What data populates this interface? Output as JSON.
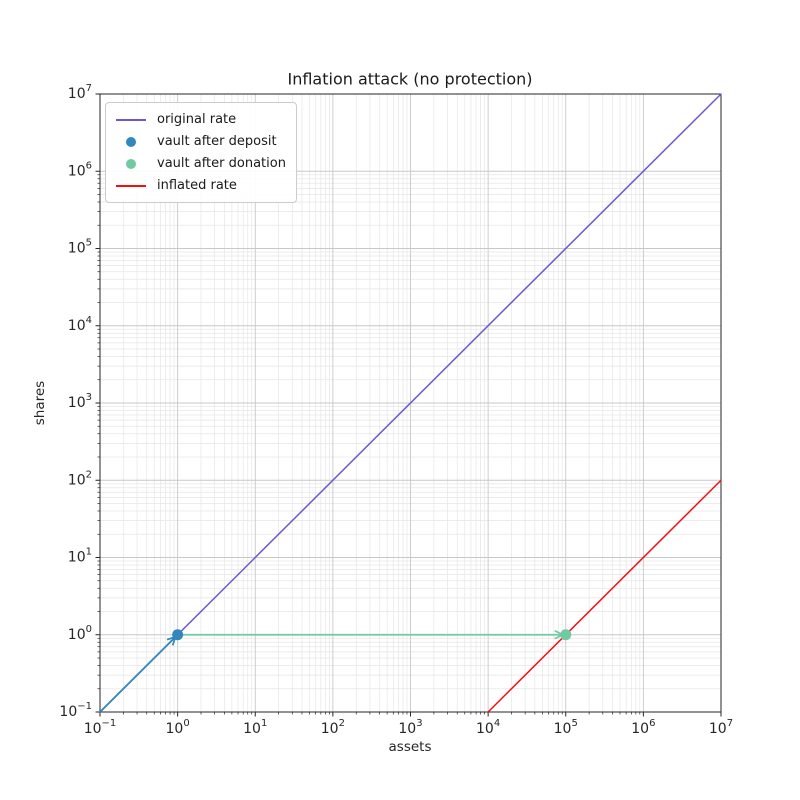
{
  "chart_data": {
    "type": "line",
    "title": "Inflation attack (no protection)",
    "xlabel": "assets",
    "ylabel": "shares",
    "xscale": "log",
    "yscale": "log",
    "xlim": [
      0.1,
      10000000
    ],
    "ylim": [
      0.1,
      10000000
    ],
    "x_tick_exponents": [
      -1,
      0,
      1,
      2,
      3,
      4,
      5,
      6,
      7
    ],
    "y_tick_exponents": [
      -1,
      0,
      1,
      2,
      3,
      4,
      5,
      6,
      7
    ],
    "grid": {
      "which": "both",
      "major_color": "#c8c8c8",
      "minor_color": "#e6e6e6"
    },
    "legend_position": "upper left",
    "series": [
      {
        "name": "original rate",
        "type": "line",
        "color": "#6a5acd",
        "x": [
          0.1,
          10000000
        ],
        "y": [
          0.1,
          10000000
        ]
      },
      {
        "name": "vault after deposit",
        "type": "scatter",
        "color": "#3287bf",
        "x": [
          1
        ],
        "y": [
          1
        ]
      },
      {
        "name": "vault after donation",
        "type": "scatter",
        "color": "#70caa2",
        "x": [
          100000
        ],
        "y": [
          1
        ]
      },
      {
        "name": "inflated rate",
        "type": "line",
        "color": "#f40f0f",
        "x": [
          10000,
          10000000
        ],
        "y": [
          0.1,
          100
        ]
      }
    ],
    "annotations": [
      {
        "type": "arrow",
        "color": "#3287bf",
        "from": [
          0.1,
          0.1
        ],
        "to": [
          1,
          1
        ]
      },
      {
        "type": "arrow",
        "color": "#70caa2",
        "from": [
          1,
          1
        ],
        "to": [
          100000,
          1
        ]
      }
    ]
  }
}
